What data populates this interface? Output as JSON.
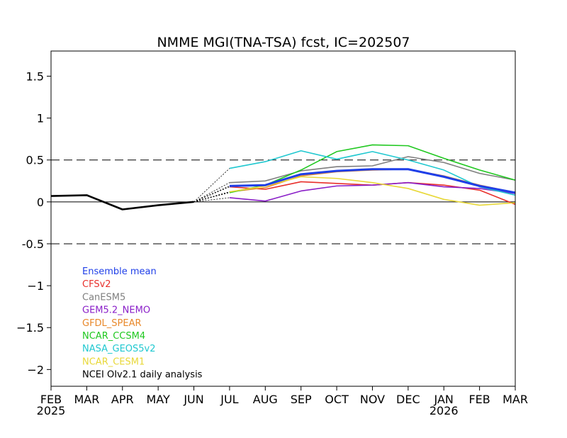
{
  "chart_data": {
    "type": "line",
    "title": "NMME MGI(TNA-TSA) fcst, IC=202507",
    "x_labels": [
      "FEB",
      "MAR",
      "APR",
      "MAY",
      "JUN",
      "JUL",
      "AUG",
      "SEP",
      "OCT",
      "NOV",
      "DEC",
      "JAN",
      "FEB",
      "MAR"
    ],
    "year_labels": [
      {
        "label": "2025",
        "index": 0
      },
      {
        "label": "2026",
        "index": 11
      }
    ],
    "ylim": [
      -2.2,
      1.8
    ],
    "y_ticks": [
      {
        "value": 1.5,
        "label": "1.5"
      },
      {
        "value": 1,
        "label": "1"
      },
      {
        "value": 0.5,
        "label": "0.5"
      },
      {
        "value": 0,
        "label": "0"
      },
      {
        "value": -0.5,
        "label": "-0.5"
      },
      {
        "value": -1,
        "label": "−1"
      },
      {
        "value": -1.5,
        "label": "−1.5"
      },
      {
        "value": -2,
        "label": "−2"
      }
    ],
    "reference_lines": {
      "dashed": [
        0.5,
        -0.5
      ],
      "solid": [
        0
      ]
    },
    "legend_position": "lower-left",
    "observed": {
      "name": "NCEI OIv2.1 daily analysis",
      "color": "#000000",
      "x_start": 0,
      "values": [
        0.07,
        0.08,
        -0.09,
        -0.04,
        0.0
      ]
    },
    "series": [
      {
        "name": "Ensemble mean",
        "color": "#1f3fe8",
        "bold": true,
        "values": [
          0.19,
          0.2,
          0.33,
          0.37,
          0.39,
          0.39,
          0.3,
          0.19,
          0.11
        ]
      },
      {
        "name": "CFSv2",
        "color": "#e8302c",
        "values": [
          0.18,
          0.15,
          0.24,
          0.22,
          0.2,
          0.23,
          0.2,
          0.14,
          -0.03
        ]
      },
      {
        "name": "CanESM5",
        "color": "#7f7f7f",
        "values": [
          0.23,
          0.25,
          0.37,
          0.42,
          0.43,
          0.54,
          0.47,
          0.34,
          0.26
        ]
      },
      {
        "name": "GEM5.2_NEMO",
        "color": "#8a1fc8",
        "values": [
          0.05,
          0.01,
          0.13,
          0.19,
          0.2,
          0.23,
          0.18,
          0.16,
          0.1
        ]
      },
      {
        "name": "GFDL_SPEAR",
        "color": "#e8882a",
        "values": [
          0.12,
          0.17,
          0.31,
          0.36,
          0.38,
          0.39,
          0.31,
          0.2,
          0.11
        ]
      },
      {
        "name": "NCAR_CCSM4",
        "color": "#20c820",
        "values": [
          0.11,
          0.2,
          0.38,
          0.6,
          0.68,
          0.67,
          0.52,
          0.38,
          0.26
        ]
      },
      {
        "name": "NASA_GEOS5v2",
        "color": "#20c8d0",
        "values": [
          0.4,
          0.48,
          0.61,
          0.51,
          0.6,
          0.5,
          0.38,
          0.18,
          0.08
        ]
      },
      {
        "name": "NCAR_CESM1",
        "color": "#e8d838",
        "values": [
          0.12,
          0.19,
          0.3,
          0.28,
          0.23,
          0.16,
          0.03,
          -0.04,
          -0.01
        ]
      }
    ],
    "forecast_x_start": 5,
    "forecast_anchor": {
      "x": 4,
      "y": 0.0
    }
  }
}
